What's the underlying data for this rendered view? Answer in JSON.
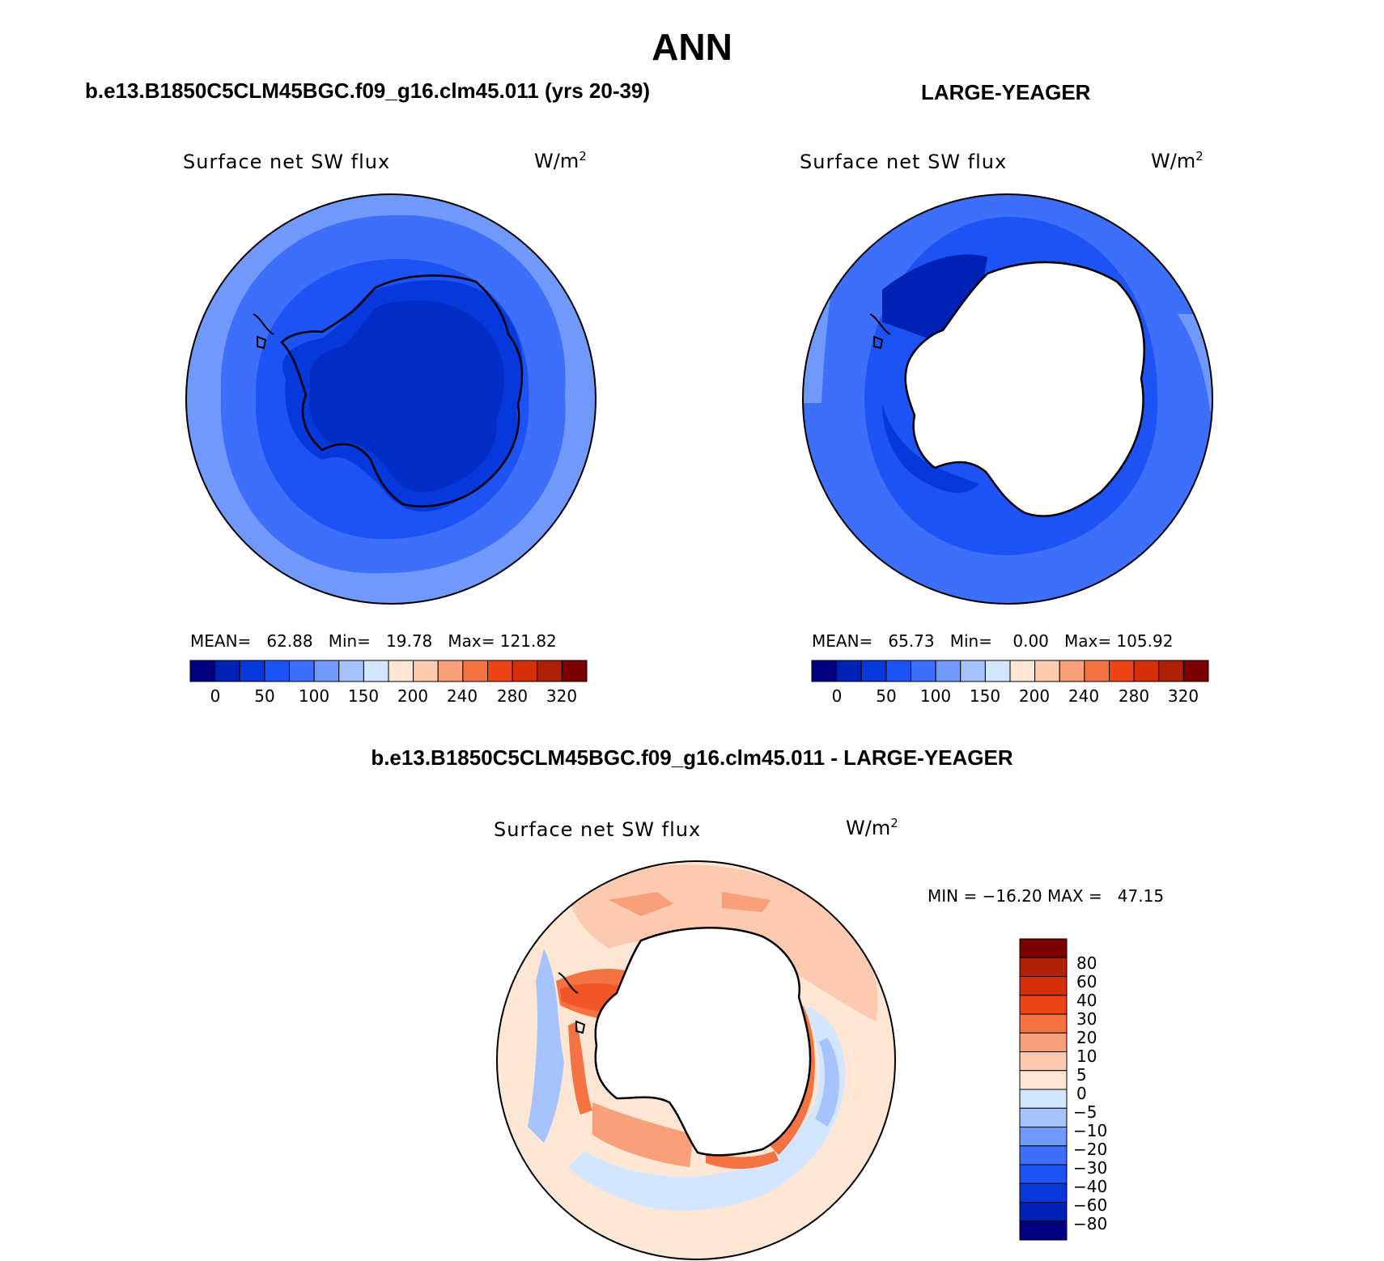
{
  "figure": {
    "title": "ANN",
    "left_case": "b.e13.B1850C5CLM45BGC.f09_g16.clm45.011 (yrs 20-39)",
    "right_case": "LARGE-YEAGER",
    "diff_case": "b.e13.B1850C5CLM45BGC.f09_g16.clm45.011 - LARGE-YEAGER"
  },
  "panels": {
    "left": {
      "label": "Surface net SW flux",
      "units_base": "W/m",
      "units_exp": "2",
      "stats": "MEAN=   62.88   Min=   19.78   Max= 121.82"
    },
    "right": {
      "label": "Surface net SW flux",
      "units_base": "W/m",
      "units_exp": "2",
      "stats": "MEAN=   65.73   Min=    0.00   Max= 105.92"
    },
    "diff": {
      "label": "Surface net SW flux",
      "units_base": "W/m",
      "units_exp": "2",
      "stats": "MIN = −16.20 MAX =   47.15"
    }
  },
  "colorbar_abs": {
    "colors": [
      "#000080",
      "#0022b4",
      "#0638dc",
      "#1d52f4",
      "#3e6ffa",
      "#7199fb",
      "#a6c3fd",
      "#d4e6fe",
      "#fde7d4",
      "#fccab0",
      "#f9a07b",
      "#f57242",
      "#ec4416",
      "#d3300a",
      "#b02006",
      "#7c0000"
    ],
    "tick_labels": [
      "0",
      "50",
      "100",
      "150",
      "200",
      "240",
      "280",
      "320"
    ]
  },
  "colorbar_diff": {
    "colors_top_to_bottom": [
      "#7c0000",
      "#b02006",
      "#d3300a",
      "#ec4416",
      "#f57242",
      "#f9a07b",
      "#fccab0",
      "#fde7d4",
      "#d4e6fe",
      "#a6c3fd",
      "#7199fb",
      "#3e6ffa",
      "#1d52f4",
      "#0638dc",
      "#0022b4",
      "#000080"
    ],
    "tick_labels": [
      "80",
      "60",
      "40",
      "30",
      "20",
      "10",
      "5",
      "0",
      "−5",
      "−10",
      "−20",
      "−30",
      "−40",
      "−60",
      "−80"
    ]
  },
  "map_colors": {
    "ocean_outer": "#7199fb",
    "ocean_mid": "#3e6ffa",
    "ocean_inner": "#1d52f4",
    "ice": "#0638dc",
    "ice_deep": "#0022b4",
    "land_mask": "#ffffff",
    "diff_bg": "#fde7d4",
    "diff_pos": "#fccab0",
    "diff_pos2": "#f9a07b",
    "diff_pos3": "#f57242",
    "diff_pos4": "#ec4416",
    "diff_neg": "#d4e6fe",
    "diff_neg2": "#a6c3fd",
    "diff_neg3": "#7199fb"
  }
}
